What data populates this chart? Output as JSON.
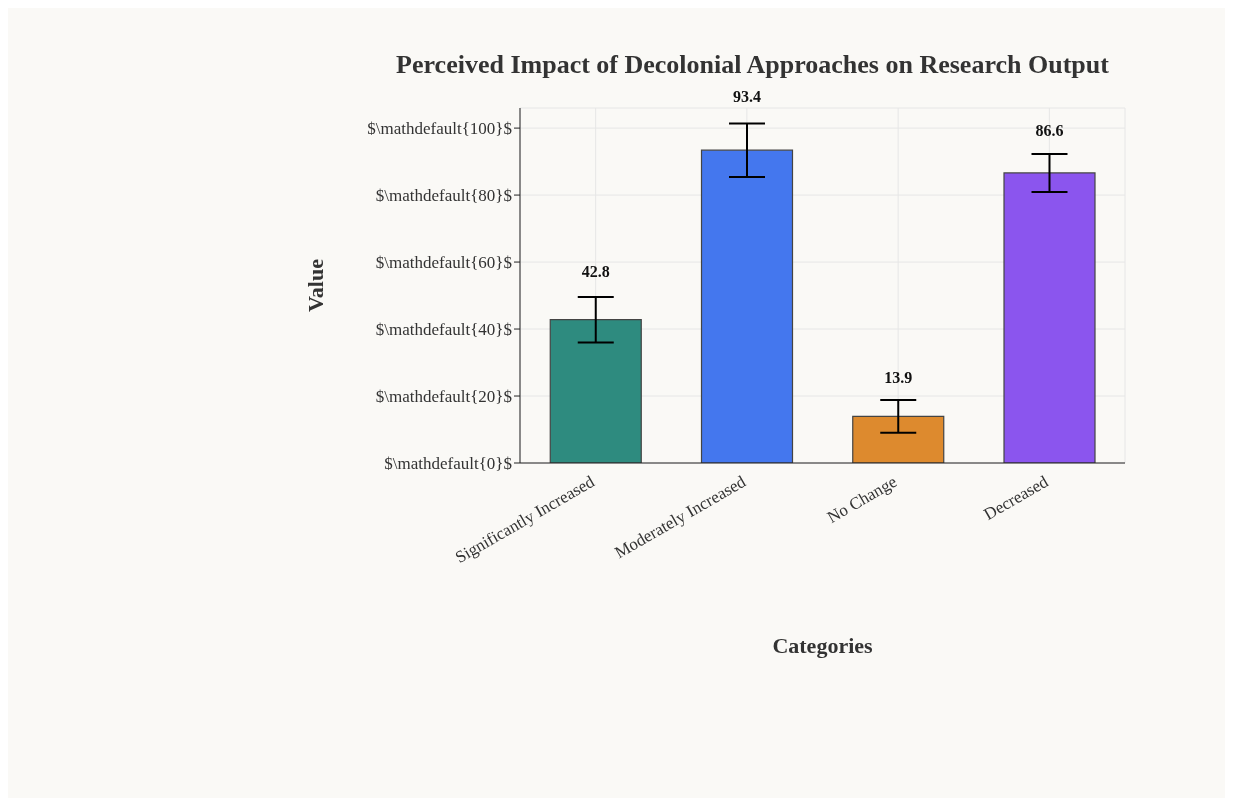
{
  "chart_data": {
    "type": "bar",
    "title": "Perceived Impact of Decolonial Approaches on Research Output",
    "xlabel": "Categories",
    "ylabel": "Value",
    "categories": [
      "Significantly Increased",
      "Moderately Increased",
      "No Change",
      "Decreased"
    ],
    "values": [
      42.8,
      93.4,
      13.9,
      86.6
    ],
    "colors": [
      "#2e8b7f",
      "#4477ee",
      "#dd8a2e",
      "#8b55ee"
    ],
    "errors": [
      6.8,
      8.0,
      4.9,
      5.7
    ],
    "data_labels": true,
    "ylim": [
      0,
      106
    ],
    "yticks": [
      {
        "value": 0,
        "label": "$\\mathdefault{0}$"
      },
      {
        "value": 20,
        "label": "$\\mathdefault{20}$"
      },
      {
        "value": 40,
        "label": "$\\mathdefault{40}$"
      },
      {
        "value": 60,
        "label": "$\\mathdefault{60}$"
      },
      {
        "value": 80,
        "label": "$\\mathdefault{80}$"
      },
      {
        "value": 100,
        "label": "$\\mathdefault{100}$"
      }
    ],
    "grid": true
  }
}
